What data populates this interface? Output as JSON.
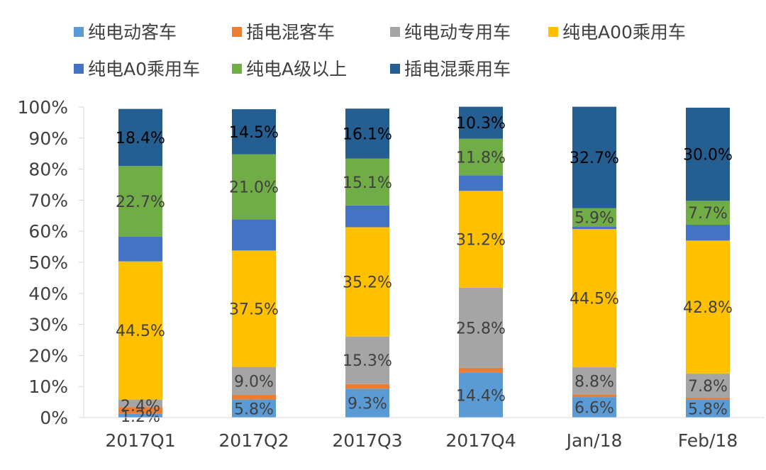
{
  "chart_data": {
    "type": "bar",
    "stacked": true,
    "percent": true,
    "categories": [
      "2017Q1",
      "2017Q2",
      "2017Q3",
      "2017Q4",
      "Jan/18",
      "Feb/18"
    ],
    "ylim": [
      0,
      100
    ],
    "yticks": [
      "0%",
      "10%",
      "20%",
      "30%",
      "40%",
      "50%",
      "60%",
      "70%",
      "80%",
      "90%",
      "100%"
    ],
    "grid": false,
    "legend_position": "top",
    "series": [
      {
        "name": "纯电动客车",
        "color": "#5B9BD5",
        "values": [
          1.2,
          5.8,
          9.3,
          14.4,
          6.6,
          5.8
        ],
        "labels": [
          "1.2%",
          "5.8%",
          "9.3%",
          "14.4%",
          "6.6%",
          "5.8%"
        ]
      },
      {
        "name": "插电混客车",
        "color": "#ED7D31",
        "values": [
          2.2,
          1.5,
          1.5,
          1.6,
          0.8,
          0.6
        ],
        "labels": [
          "",
          "",
          "",
          "",
          "",
          ""
        ]
      },
      {
        "name": "纯电动专用车",
        "color": "#A5A5A5",
        "values": [
          2.4,
          9.0,
          15.3,
          25.8,
          8.8,
          7.8
        ],
        "labels": [
          "2.4%",
          "9.0%",
          "15.3%",
          "25.8%",
          "8.8%",
          "7.8%"
        ]
      },
      {
        "name": "纯电A00乘用车",
        "color": "#FFC000",
        "values": [
          44.5,
          37.5,
          35.2,
          31.2,
          44.5,
          42.8
        ],
        "labels": [
          "44.5%",
          "37.5%",
          "35.2%",
          "31.2%",
          "44.5%",
          "42.8%"
        ]
      },
      {
        "name": "纯电A0乘用车",
        "color": "#4472C4",
        "values": [
          8.0,
          10.0,
          7.0,
          5.0,
          0.8,
          5.1
        ],
        "labels": [
          "",
          "",
          "",
          "",
          "",
          ""
        ]
      },
      {
        "name": "纯电A级以上",
        "color": "#70AD47",
        "values": [
          22.7,
          21.0,
          15.1,
          11.8,
          5.9,
          7.7
        ],
        "labels": [
          "22.7%",
          "21.0%",
          "15.1%",
          "11.8%",
          "5.9%",
          "7.7%"
        ]
      },
      {
        "name": "插电混乘用车",
        "color": "#255E91",
        "values": [
          18.4,
          14.5,
          16.1,
          10.3,
          32.7,
          30.0
        ],
        "labels": [
          "18.4%",
          "14.5%",
          "16.1%",
          "10.3%",
          "32.7%",
          "30.0%"
        ]
      }
    ]
  }
}
